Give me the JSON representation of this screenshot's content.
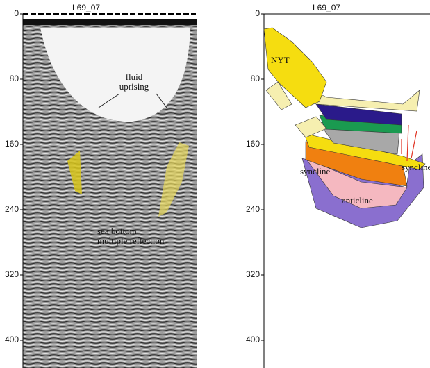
{
  "left": {
    "title": "L69_07",
    "yticks": [
      0,
      80,
      160,
      240,
      320,
      400
    ],
    "fluid_label": [
      "fluid",
      "uprising"
    ],
    "multiple_label": [
      "sea bottom",
      "multiple reflection"
    ]
  },
  "right": {
    "title": "L69_07",
    "yticks": [
      0,
      80,
      160,
      240,
      320,
      400
    ],
    "labels": [
      "NYT",
      "syncline",
      "syncline",
      "anticline"
    ]
  }
}
